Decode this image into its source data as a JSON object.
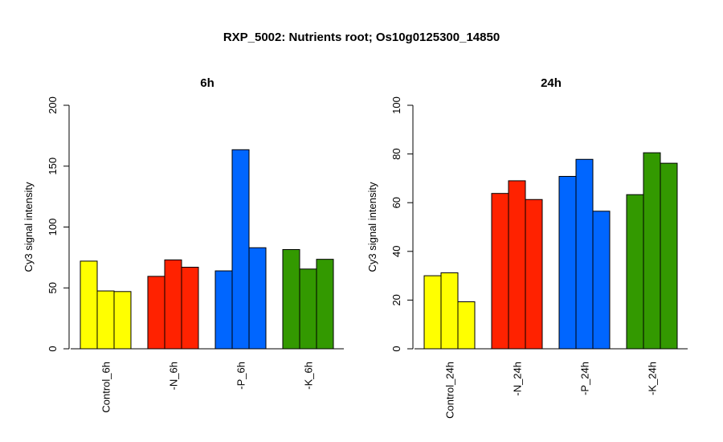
{
  "title": "RXP_5002: Nutrients root; Os10g0125300_14850",
  "chart_data": [
    {
      "type": "bar",
      "title": "6h",
      "ylabel": "Cy3 signal intensity",
      "ylim": [
        0,
        200
      ],
      "yticks": [
        0,
        50,
        100,
        150,
        200
      ],
      "grid": false,
      "groups": [
        {
          "label": "Control_6h",
          "color": "#ffff00",
          "values": [
            72,
            47.5,
            47
          ]
        },
        {
          "label": "-N_6h",
          "color": "#ff2200",
          "values": [
            59.5,
            73,
            67
          ]
        },
        {
          "label": "-P_6h",
          "color": "#0066ff",
          "values": [
            64,
            163.5,
            83
          ]
        },
        {
          "label": "-K_6h",
          "color": "#339900",
          "values": [
            81.5,
            65.5,
            73.5
          ]
        }
      ]
    },
    {
      "type": "bar",
      "title": "24h",
      "ylabel": "Cy3 signal intensity",
      "ylim": [
        0,
        100
      ],
      "yticks": [
        0,
        20,
        40,
        60,
        80,
        100
      ],
      "grid": false,
      "groups": [
        {
          "label": "Control_24h",
          "color": "#ffff00",
          "values": [
            30,
            31.2,
            19.3
          ]
        },
        {
          "label": "-N_24h",
          "color": "#ff2200",
          "values": [
            63.8,
            69,
            61.3
          ]
        },
        {
          "label": "-P_24h",
          "color": "#0066ff",
          "values": [
            70.8,
            77.8,
            56.5
          ]
        },
        {
          "label": "-K_24h",
          "color": "#339900",
          "values": [
            63.3,
            80.5,
            76.2
          ]
        }
      ]
    }
  ]
}
